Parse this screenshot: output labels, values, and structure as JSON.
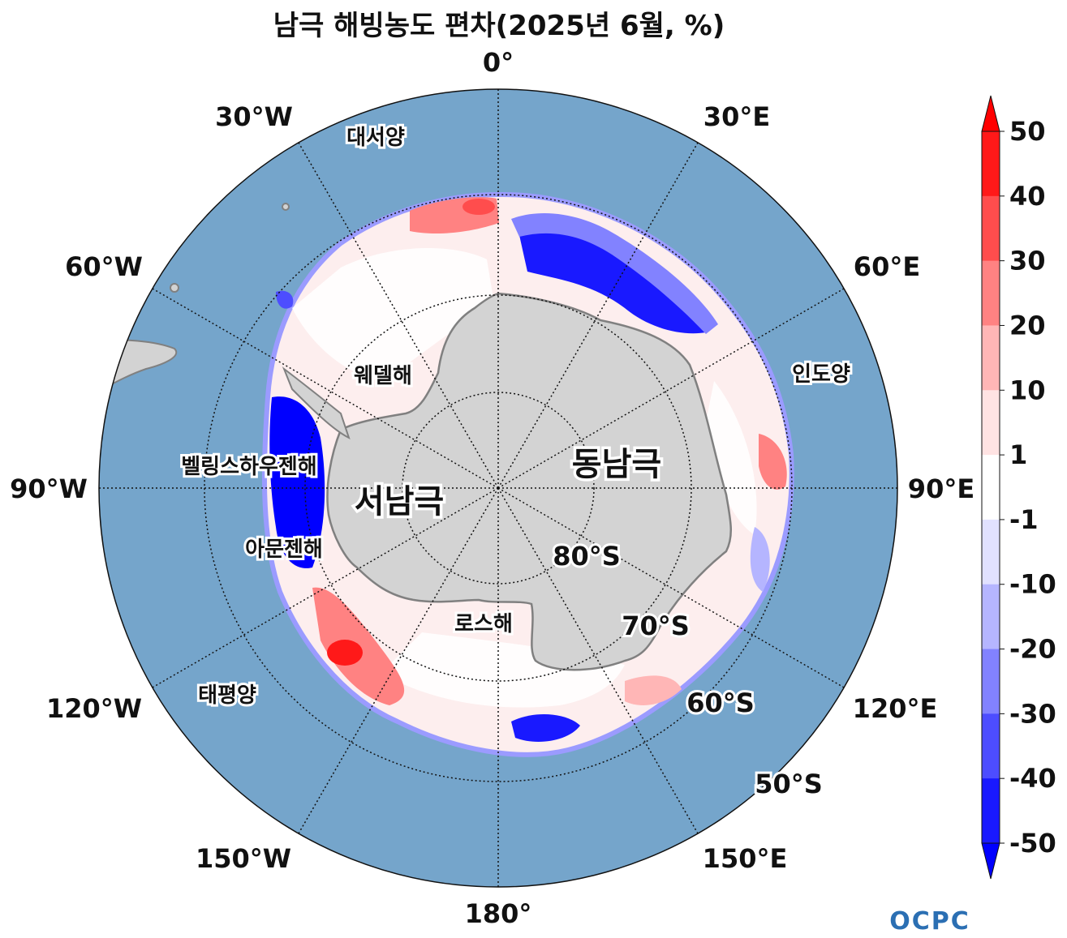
{
  "title": "남극 해빙농도 편차(2025년 6월, %)",
  "map": {
    "projection": "south-polar-stereographic",
    "longitude_labels": {
      "lon_0": "0°",
      "lon_30e": "30°E",
      "lon_60e": "60°E",
      "lon_90e": "90°E",
      "lon_120e": "120°E",
      "lon_150e": "150°E",
      "lon_180": "180°",
      "lon_150w": "150°W",
      "lon_120w": "120°W",
      "lon_90w": "90°W",
      "lon_60w": "60°W",
      "lon_30w": "30°W"
    },
    "latitude_labels": {
      "lat_80": "80°S",
      "lat_70": "70°S",
      "lat_60": "60°S",
      "lat_50": "50°S"
    },
    "region_labels": {
      "atlantic": "대서양",
      "indian": "인도양",
      "pacific": "태평양",
      "weddell": "웨델해",
      "bellingshausen": "벨링스하우젠해",
      "amundsen": "아문젠해",
      "ross": "로스해",
      "east_antarctica": "동남극",
      "west_antarctica": "서남극"
    },
    "colors": {
      "ocean": "#75a5cb",
      "land": "#d3d3d3",
      "coast": "#808080"
    }
  },
  "colorbar": {
    "ticks": [
      "50",
      "40",
      "30",
      "20",
      "10",
      "1",
      "-1",
      "-10",
      "-20",
      "-30",
      "-40",
      "-50"
    ],
    "colors": [
      "#ff1919",
      "#ff4d4d",
      "#ff8282",
      "#ffb6b6",
      "#ffe3e3",
      "#ffffff",
      "#e1e1ff",
      "#b5b5ff",
      "#8282ff",
      "#4d4dff",
      "#1919ff"
    ],
    "over_color": "#ff0000",
    "under_color": "#0000ff",
    "extend": "both"
  },
  "logo": "OCPC"
}
